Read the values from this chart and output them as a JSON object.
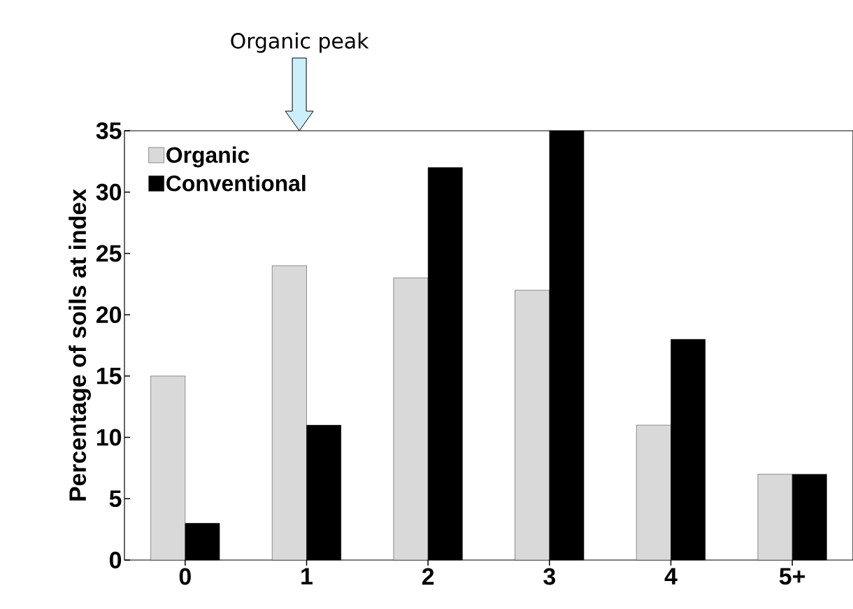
{
  "chart_data": {
    "type": "bar",
    "ylabel": "Percentage of soils at index",
    "categories": [
      "0",
      "1",
      "2",
      "3",
      "4",
      "5+"
    ],
    "series": [
      {
        "name": "Organic",
        "color": "#d9d9d9",
        "values": [
          15,
          24,
          23,
          22,
          11,
          7
        ]
      },
      {
        "name": "Conventional",
        "color": "#000000",
        "values": [
          3,
          11,
          32,
          35,
          18,
          7
        ]
      }
    ],
    "ylim": [
      0,
      35
    ],
    "yticks": [
      0,
      5,
      10,
      15,
      20,
      25,
      30,
      35
    ],
    "legend": "top left",
    "grid": false,
    "annotations": [
      "Organic peak"
    ]
  }
}
